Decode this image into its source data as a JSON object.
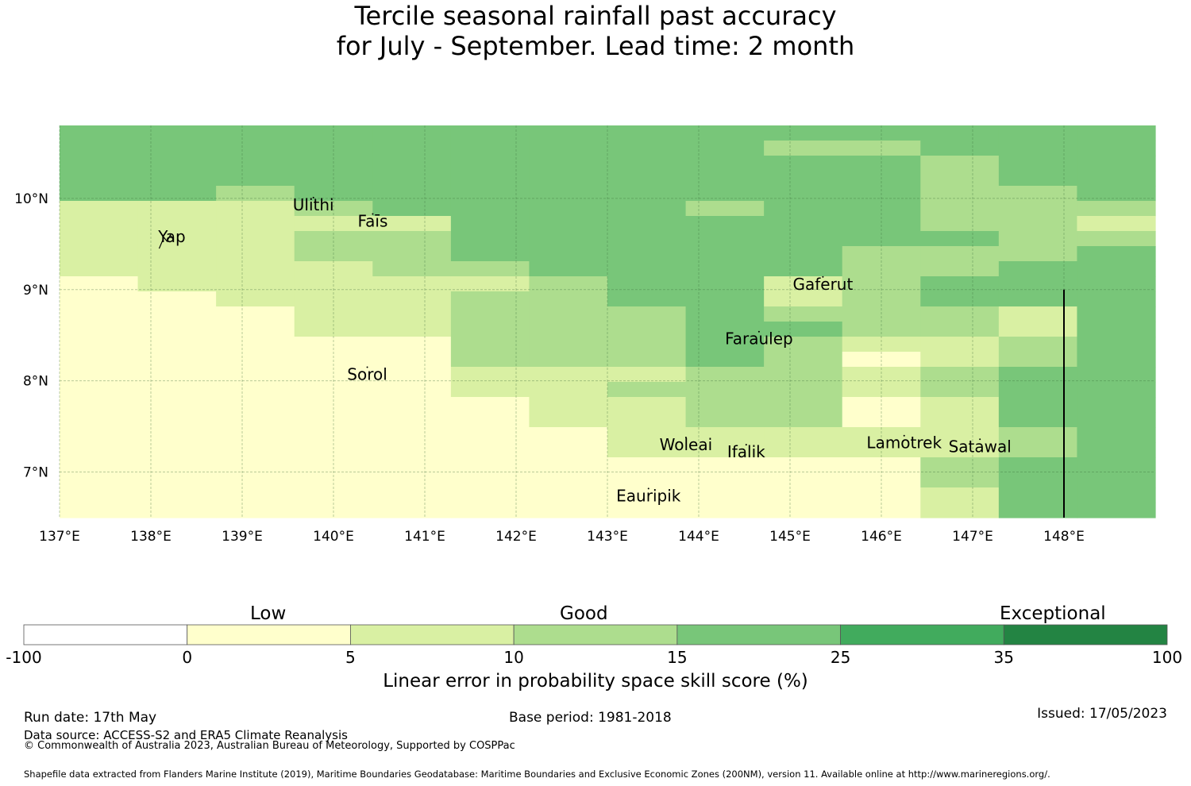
{
  "title": {
    "line1": "Tercile seasonal rainfall past accuracy",
    "line2": "for July - September. Lead time: 2 month"
  },
  "map": {
    "lon_labels": [
      "137°E",
      "138°E",
      "139°E",
      "140°E",
      "141°E",
      "142°E",
      "143°E",
      "144°E",
      "145°E",
      "146°E",
      "147°E",
      "148°E"
    ],
    "lat_labels": [
      "10°N",
      "9°N",
      "8°N",
      "7°N"
    ],
    "lon_range": [
      137,
      149
    ],
    "lat_range": [
      6.5,
      10.8
    ],
    "lon_ticks": [
      137,
      138,
      139,
      140,
      141,
      142,
      143,
      144,
      145,
      146,
      147,
      148
    ],
    "lat_ticks": [
      10,
      9,
      8,
      7
    ],
    "places": [
      {
        "name": "Yap",
        "lon": 138.23,
        "lat": 9.52
      },
      {
        "name": "Ulithi",
        "lon": 139.78,
        "lat": 9.87
      },
      {
        "name": "Faīs",
        "lon": 140.43,
        "lat": 9.69
      },
      {
        "name": "Gaferut",
        "lon": 145.36,
        "lat": 9.0
      },
      {
        "name": "Faraulep",
        "lon": 144.66,
        "lat": 8.4
      },
      {
        "name": "Sorol",
        "lon": 140.37,
        "lat": 8.01
      },
      {
        "name": "Lamotrek",
        "lon": 146.25,
        "lat": 7.26
      },
      {
        "name": "Satawal",
        "lon": 147.08,
        "lat": 7.22
      },
      {
        "name": "Woleai",
        "lon": 143.86,
        "lat": 7.24
      },
      {
        "name": "Ifalik",
        "lon": 144.52,
        "lat": 7.16
      },
      {
        "name": "Eauripik",
        "lon": 143.45,
        "lat": 6.68
      }
    ],
    "grid_class_colors": [
      "#ffffcc",
      "#d9f0a3",
      "#addd8e",
      "#78c679"
    ],
    "grid_class_ids": [
      "33333333333333",
      "33333333322333",
      "33333333333233",
      "33333333333233",
      "33233333333223",
      "11123333233222",
      "11111333333221",
      "11122333333322",
      "11122333332223",
      "11112233332233",
      "01111123312333",
      "00111223312333",
      "00011222322213",
      "00011222332213",
      "00000222321123",
      "00000222320123",
      "00000111221233",
      "00000112221233",
      "00000011220133",
      "00000011220133",
      "00000001111123",
      "00000001111123",
      "00000000000233",
      "00000000000233",
      "00000000000133",
      "00000000000133"
    ],
    "eez_boundary_lon": 148.0
  },
  "legend": {
    "categories": [
      "Low",
      "Good",
      "Exceptional"
    ],
    "ticks": [
      "-100",
      "0",
      "5",
      "10",
      "15",
      "25",
      "35",
      "100"
    ],
    "colors": [
      "#ffffff",
      "#ffffcc",
      "#d9f0a3",
      "#addd8e",
      "#78c679",
      "#41ab5d",
      "#238443"
    ],
    "label": "Linear error in probability space skill score (%)"
  },
  "footer": {
    "run_date": "Run date: 17th May",
    "base_period": "Base period: 1981-2018",
    "issued": "Issued: 17/05/2023",
    "data_source": "Data source: ACCESS-S2 and ERA5 Climate Reanalysis",
    "copyright": "© Commonwealth of Australia 2023, Australian Bureau of Meteorology, Supported by COSPPac",
    "shapefile": "Shapefile data extracted from Flanders Marine Institute (2019), Maritime Boundaries Geodatabase: Maritime Boundaries and Exclusive Economic Zones (200NM), version 11. Available online at http://www.marineregions.org/."
  }
}
